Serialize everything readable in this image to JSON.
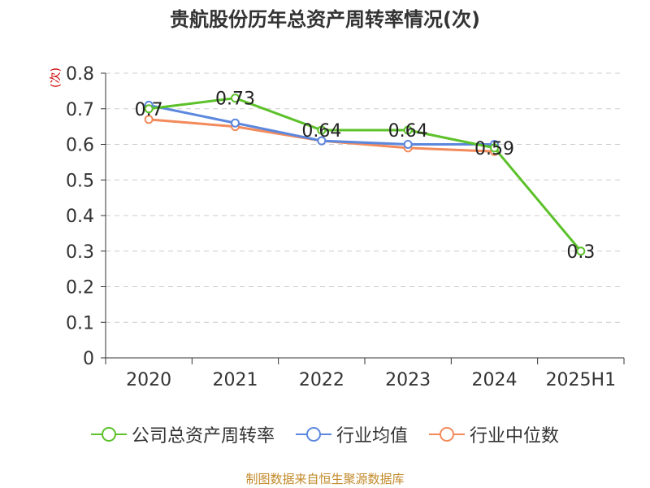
{
  "title": "贵航股份历年总资产周转率情况(次)",
  "source_note": "制图数据来自恒生聚源数据库",
  "chart_data": {
    "type": "line",
    "title": "贵航股份历年总资产周转率情况(次)",
    "ylabel": "(次)",
    "xlabel": "",
    "categories": [
      "2020",
      "2021",
      "2022",
      "2023",
      "2024",
      "2025H1"
    ],
    "ylim": [
      0,
      0.8
    ],
    "yticks": [
      "0",
      "0.1",
      "0.2",
      "0.3",
      "0.4",
      "0.5",
      "0.6",
      "0.7",
      "0.8"
    ],
    "grid": true,
    "legend_position": "bottom",
    "series": [
      {
        "name": "公司总资产周转率",
        "color": "#5cc12a",
        "values": [
          0.7,
          0.73,
          0.64,
          0.64,
          0.59,
          0.3
        ],
        "labels": [
          "0.7",
          "0.73",
          "0.64",
          "0.64",
          "0.59",
          "0.3"
        ]
      },
      {
        "name": "行业均值",
        "color": "#5b87dd",
        "values": [
          0.71,
          0.66,
          0.61,
          0.6,
          0.6,
          null
        ]
      },
      {
        "name": "行业中位数",
        "color": "#f28a5b",
        "values": [
          0.67,
          0.65,
          0.61,
          0.59,
          0.58,
          null
        ]
      }
    ]
  }
}
